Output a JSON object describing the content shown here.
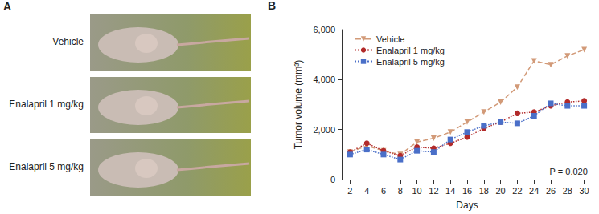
{
  "panel_a": {
    "label": "A",
    "rows": [
      "Vehicle",
      "Enalapril 1 mg/kg",
      "Enalapril 5 mg/kg"
    ]
  },
  "chart_data": {
    "type": "line",
    "panel_label": "B",
    "x_label": "Days",
    "y_label": "Tumor volume (mm³)",
    "annotations": [
      "P = 0.020"
    ],
    "x": [
      2,
      4,
      6,
      8,
      10,
      12,
      14,
      16,
      18,
      20,
      22,
      24,
      26,
      28,
      30
    ],
    "xlim": [
      1,
      31
    ],
    "xticks": [
      2,
      4,
      6,
      8,
      10,
      12,
      14,
      16,
      18,
      20,
      22,
      24,
      26,
      28,
      30
    ],
    "ylim": [
      0,
      6000
    ],
    "yticks": [
      0,
      {
        "value": 2000,
        "label": "2,000"
      },
      {
        "value": 4000,
        "label": "4,000"
      },
      {
        "value": 6000,
        "label": "6,000"
      }
    ],
    "grid": false,
    "legend": "upper left",
    "series": [
      {
        "name": "Vehicle",
        "color": "#d29a78",
        "marker": "triangle_down",
        "line_style": "dashed",
        "values": [
          1100,
          1350,
          1150,
          1000,
          1500,
          1650,
          1900,
          2300,
          2700,
          3100,
          3700,
          4750,
          4600,
          4950,
          5200
        ]
      },
      {
        "name": "Enalapril 1 mg/kg",
        "color": "#b22a2a",
        "marker": "circle",
        "line_style": "dotted",
        "values": [
          1100,
          1450,
          1150,
          950,
          1300,
          1250,
          1450,
          1700,
          2050,
          2300,
          2650,
          2700,
          2950,
          3100,
          3150
        ]
      },
      {
        "name": "Enalapril 5 mg/kg",
        "color": "#4a6fc8",
        "marker": "square",
        "line_style": "dotted",
        "values": [
          1000,
          1200,
          1000,
          800,
          1150,
          1100,
          1600,
          1900,
          2150,
          2300,
          2250,
          2550,
          3050,
          2950,
          2950
        ]
      }
    ]
  }
}
